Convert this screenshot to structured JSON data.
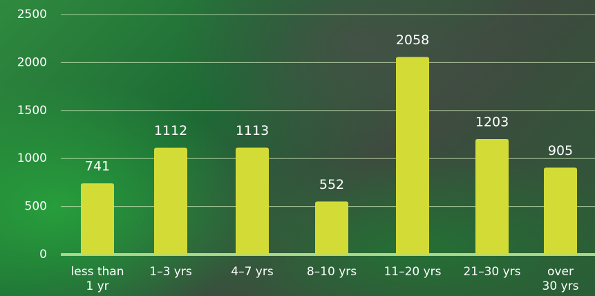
{
  "chart_data": {
    "type": "bar",
    "categories": [
      "less than\n1 yr",
      "1–3 yrs",
      "4–7 yrs",
      "8–10 yrs",
      "11–20 yrs",
      "21–30 yrs",
      "over\n30 yrs"
    ],
    "values": [
      741,
      1112,
      1113,
      552,
      2058,
      1203,
      905
    ],
    "color": "#d3dc36",
    "ylim": [
      0,
      2500
    ],
    "yticks": [
      0,
      500,
      1000,
      1500,
      2000,
      2500
    ],
    "grid": true
  }
}
